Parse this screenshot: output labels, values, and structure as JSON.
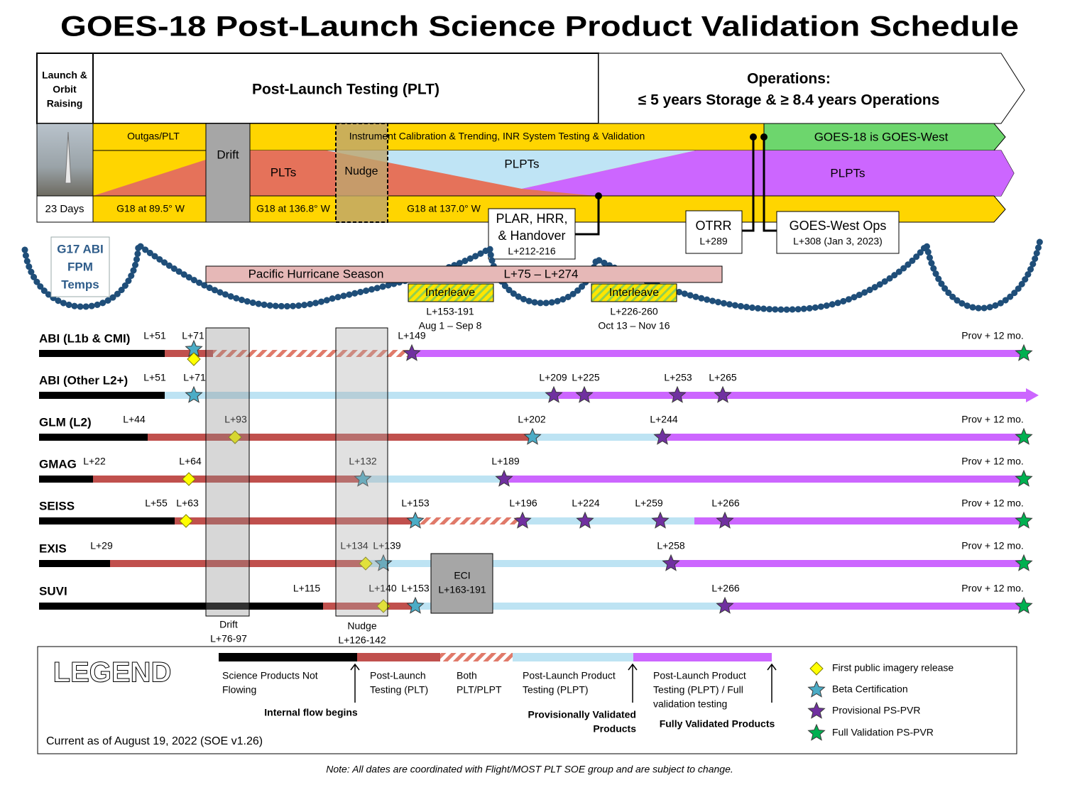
{
  "title": "GOES-18 Post-Launch Science Product Validation Schedule",
  "header": {
    "launch": [
      "Launch &",
      "Orbit",
      "Raising"
    ],
    "plt": "Post-Launch Testing (PLT)",
    "operations": [
      "Operations:",
      "≤ 5 years Storage & ≥ 8.4 years Operations"
    ]
  },
  "bands": {
    "outgas": "Outgas/PLT",
    "drift": "Drift",
    "calibration": "Instrument Calibration & Trending, INR System Testing & Validation",
    "goes_west": "GOES-18 is GOES-West",
    "plts": "PLTs",
    "nudge": "Nudge",
    "plpts_early": "PLPTs",
    "plpts_late": "PLPTs",
    "days": "23 Days",
    "position_1": "G18 at 89.5° W",
    "position_2": "G18 at 136.8° W",
    "position_3": "G18 at 137.0° W"
  },
  "milestones": [
    {
      "lines": [
        "PLAR, HRR,",
        "& Handover"
      ],
      "date": "L+212-216"
    },
    {
      "lines": [
        "OTRR"
      ],
      "date": "L+289"
    },
    {
      "lines": [
        "GOES-West Ops"
      ],
      "date": "L+308 (Jan 3, 2023)"
    }
  ],
  "g17": [
    "G17 ABI",
    "FPM",
    "Temps"
  ],
  "hurricane": {
    "label": "Pacific Hurricane Season",
    "range": "L+75 – L+274"
  },
  "interleaves": [
    {
      "label": "Interleave",
      "range": "L+153-191",
      "dates": "Aug 1 – Sep 8"
    },
    {
      "label": "Interleave",
      "range": "L+226-260",
      "dates": "Oct 13 – Nov 16"
    }
  ],
  "products": [
    {
      "name": "ABI (L1b & CMI)",
      "labels": [
        "L+51",
        "L+71",
        "L+149",
        "Prov + 12 mo."
      ]
    },
    {
      "name": "ABI (Other L2+)",
      "labels": [
        "L+51",
        "L+71",
        "L+209",
        "L+225",
        "L+253",
        "L+265"
      ]
    },
    {
      "name": "GLM (L2)",
      "labels": [
        "L+44",
        "L+93",
        "L+202",
        "L+244",
        "Prov + 12 mo."
      ]
    },
    {
      "name": "GMAG",
      "labels": [
        "L+22",
        "L+64",
        "L+132",
        "L+189",
        "Prov + 12 mo."
      ]
    },
    {
      "name": "SEISS",
      "labels": [
        "L+55",
        "L+63",
        "L+153",
        "L+196",
        "L+224",
        "L+259",
        "L+266",
        "Prov + 12 mo."
      ]
    },
    {
      "name": "EXIS",
      "labels": [
        "L+29",
        "L+134",
        "L+139",
        "L+258",
        "Prov + 12 mo."
      ]
    },
    {
      "name": "SUVI",
      "labels": [
        "L+115",
        "L+140",
        "L+153",
        "L+266",
        "Prov + 12 mo."
      ]
    }
  ],
  "windows": [
    {
      "label": "Drift",
      "range": "L+76-97"
    },
    {
      "label": "Nudge",
      "range": "L+126-142"
    },
    {
      "label": "ECI",
      "range": "L+163-191"
    }
  ],
  "legend": {
    "title": "LEGEND",
    "phases": [
      [
        "Science Products Not",
        "Flowing"
      ],
      [
        "Post-Launch",
        "Testing (PLT)"
      ],
      [
        "Both",
        "PLT/PLPT"
      ],
      [
        "Post-Launch Product",
        "Testing (PLPT)"
      ],
      [
        "Post-Launch Product",
        "Testing (PLPT) / Full",
        "validation testing"
      ]
    ],
    "milestones": [
      [
        "Internal flow begins"
      ],
      [
        "Provisionally Validated",
        "Products"
      ],
      [
        "Fully Validated Products"
      ]
    ],
    "symbols": [
      "First public imagery release",
      "Beta Certification",
      "Provisional PS-PVR",
      "Full Validation PS-PVR"
    ],
    "current": "Current as of August 19, 2022 (SOE v1.26)"
  },
  "note": "Note: All dates are coordinated with Flight/MOST PLT SOE group and are subject to change."
}
